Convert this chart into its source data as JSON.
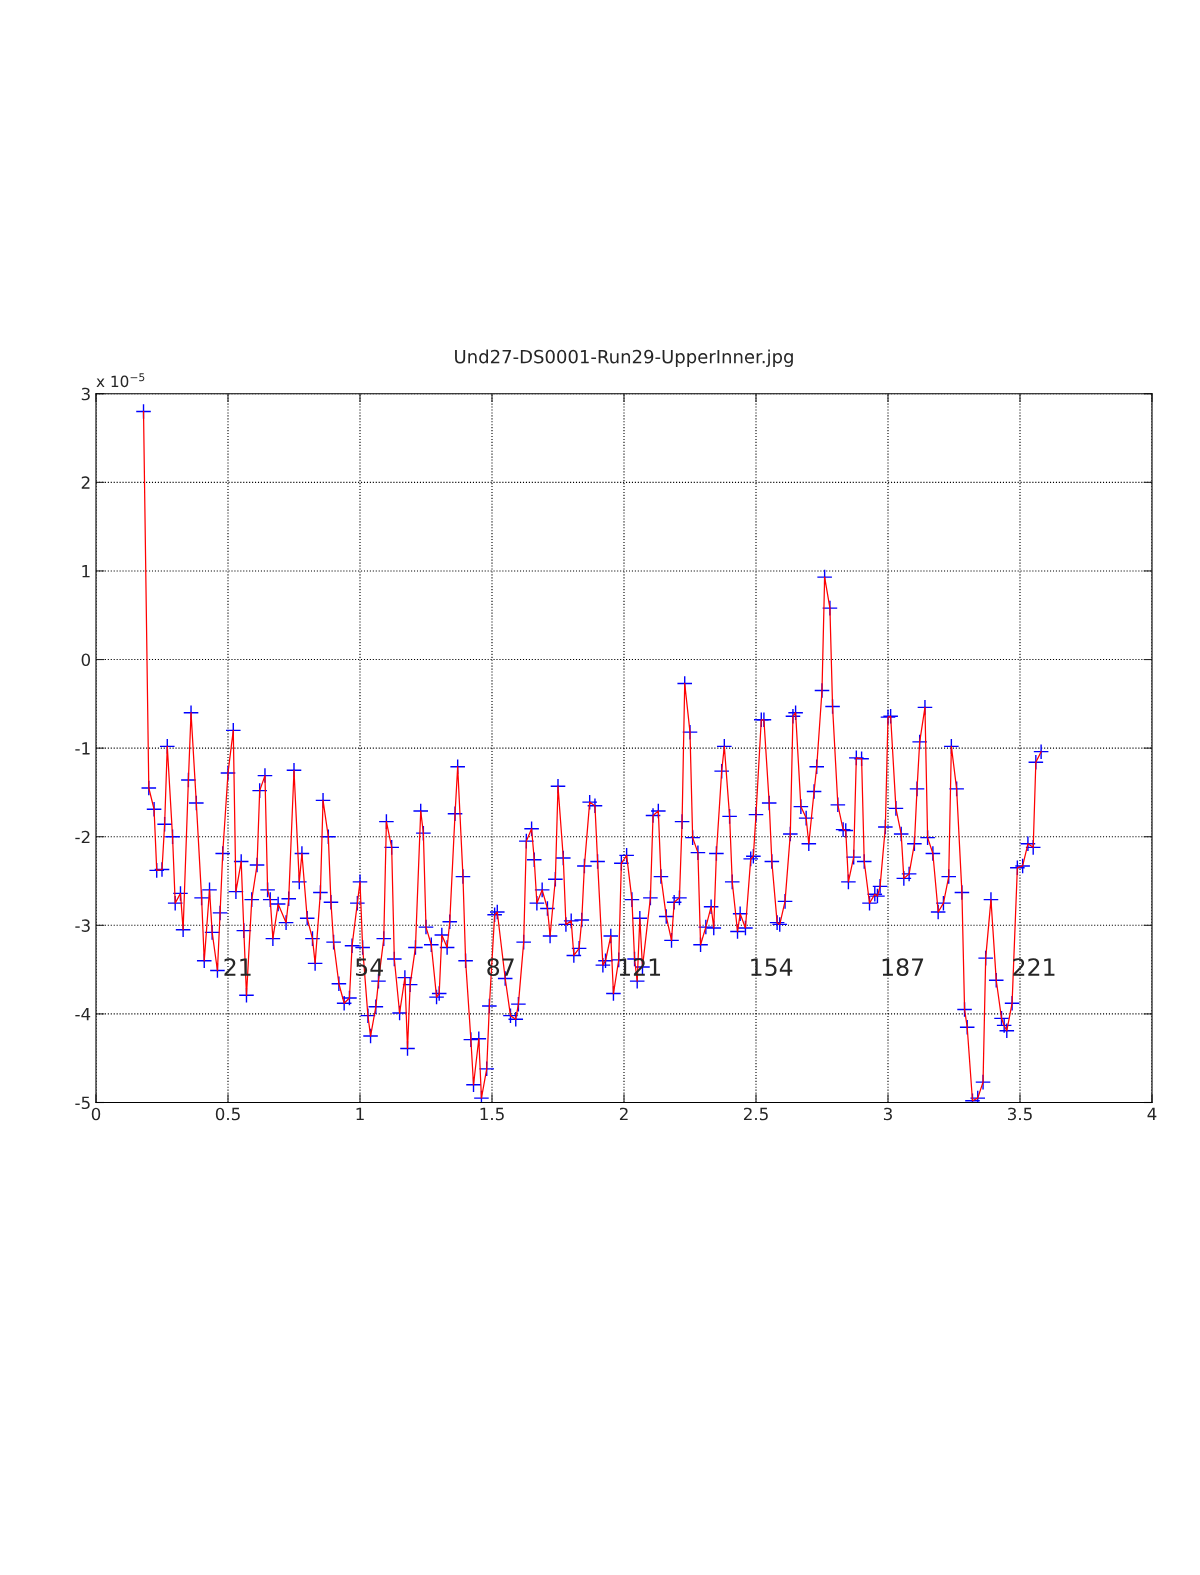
{
  "chart_data": {
    "type": "line",
    "title": "Und27-DS0001-Run29-UpperInner.jpg",
    "ylabel": "x 10$^{−5}$",
    "x": [
      0.18,
      0.2,
      0.22,
      0.23,
      0.25,
      0.26,
      0.27,
      0.29,
      0.3,
      0.32,
      0.33,
      0.35,
      0.36,
      0.38,
      0.4,
      0.41,
      0.43,
      0.44,
      0.46,
      0.47,
      0.48,
      0.5,
      0.52,
      0.53,
      0.55,
      0.56,
      0.57,
      0.59,
      0.61,
      0.62,
      0.64,
      0.65,
      0.66,
      0.67,
      0.69,
      0.72,
      0.73,
      0.75,
      0.77,
      0.78,
      0.8,
      0.82,
      0.83,
      0.85,
      0.86,
      0.88,
      0.89,
      0.9,
      0.92,
      0.94,
      0.96,
      0.97,
      0.99,
      1.0,
      1.01,
      1.03,
      1.04,
      1.06,
      1.07,
      1.09,
      1.1,
      1.12,
      1.13,
      1.15,
      1.17,
      1.18,
      1.19,
      1.21,
      1.23,
      1.24,
      1.25,
      1.27,
      1.29,
      1.3,
      1.31,
      1.33,
      1.34,
      1.36,
      1.37,
      1.39,
      1.4,
      1.42,
      1.43,
      1.45,
      1.46,
      1.48,
      1.49,
      1.51,
      1.52,
      1.55,
      1.57,
      1.59,
      1.6,
      1.62,
      1.63,
      1.65,
      1.66,
      1.67,
      1.69,
      1.71,
      1.72,
      1.74,
      1.75,
      1.77,
      1.78,
      1.8,
      1.81,
      1.83,
      1.84,
      1.85,
      1.87,
      1.89,
      1.9,
      1.92,
      1.93,
      1.95,
      1.96,
      1.98,
      1.99,
      2.01,
      2.03,
      2.04,
      2.05,
      2.06,
      2.07,
      2.1,
      2.11,
      2.13,
      2.14,
      2.16,
      2.18,
      2.19,
      2.21,
      2.22,
      2.23,
      2.25,
      2.26,
      2.28,
      2.29,
      2.31,
      2.33,
      2.34,
      2.35,
      2.37,
      2.38,
      2.4,
      2.41,
      2.43,
      2.44,
      2.46,
      2.48,
      2.49,
      2.5,
      2.52,
      2.53,
      2.55,
      2.56,
      2.58,
      2.59,
      2.61,
      2.63,
      2.64,
      2.65,
      2.67,
      2.69,
      2.7,
      2.72,
      2.73,
      2.75,
      2.76,
      2.78,
      2.79,
      2.81,
      2.83,
      2.84,
      2.85,
      2.87,
      2.88,
      2.9,
      2.91,
      2.93,
      2.95,
      2.96,
      2.97,
      2.99,
      3.0,
      3.01,
      3.03,
      3.05,
      3.06,
      3.08,
      3.1,
      3.11,
      3.12,
      3.14,
      3.15,
      3.17,
      3.19,
      3.21,
      3.23,
      3.24,
      3.26,
      3.28,
      3.29,
      3.3,
      3.32,
      3.34,
      3.36,
      3.37,
      3.39,
      3.41,
      3.43,
      3.44,
      3.45,
      3.47,
      3.49,
      3.51,
      3.53,
      3.55,
      3.56,
      3.58
    ],
    "series": [
      {
        "type": "line",
        "color": "#ff0000",
        "line_style": "solid",
        "values": [
          2.8,
          -1.45,
          -1.69,
          -2.38,
          -2.37,
          -1.86,
          -0.98,
          -2.0,
          -2.75,
          -2.64,
          -3.05,
          -1.36,
          -0.6,
          -1.62,
          -2.69,
          -3.4,
          -2.6,
          -3.08,
          -3.51,
          -2.86,
          -2.19,
          -1.28,
          -0.8,
          -2.62,
          -2.28,
          -3.06,
          -3.79,
          -2.71,
          -2.32,
          -1.48,
          -1.31,
          -2.6,
          -2.71,
          -3.15,
          -2.76,
          -2.97,
          -2.7,
          -1.25,
          -2.51,
          -2.19,
          -2.92,
          -3.15,
          -3.43,
          -2.63,
          -1.59,
          -2.0,
          -2.74,
          -3.19,
          -3.66,
          -3.88,
          -3.82,
          -3.23,
          -2.75,
          -2.51,
          -3.25,
          -4.02,
          -4.25,
          -3.92,
          -3.63,
          -3.15,
          -1.83,
          -2.12,
          -3.38,
          -3.99,
          -3.59,
          -4.39,
          -3.67,
          -3.25,
          -1.71,
          -1.96,
          -3.02,
          -3.22,
          -3.81,
          -3.77,
          -3.11,
          -3.25,
          -2.96,
          -1.74,
          -1.21,
          -2.45,
          -3.4,
          -4.29,
          -4.8,
          -4.28,
          -4.95,
          -4.62,
          -3.91,
          -2.88,
          -2.85,
          -3.6,
          -4.02,
          -4.06,
          -3.89,
          -3.19,
          -2.05,
          -1.91,
          -2.26,
          -2.75,
          -2.6,
          -2.81,
          -3.12,
          -2.48,
          -1.43,
          -2.24,
          -2.99,
          -2.95,
          -3.34,
          -3.26,
          -2.94,
          -2.33,
          -1.61,
          -1.65,
          -2.28,
          -3.45,
          -3.4,
          -3.12,
          -3.77,
          -3.39,
          -2.3,
          -2.21,
          -2.71,
          -3.38,
          -3.63,
          -2.92,
          -3.47,
          -2.69,
          -1.76,
          -1.71,
          -2.45,
          -2.9,
          -3.17,
          -2.74,
          -2.69,
          -1.83,
          -0.27,
          -0.82,
          -2.01,
          -2.18,
          -3.22,
          -3.02,
          -2.79,
          -3.03,
          -2.19,
          -1.26,
          -0.98,
          -1.77,
          -2.51,
          -3.07,
          -2.87,
          -3.03,
          -2.25,
          -2.22,
          -1.75,
          -0.68,
          -0.68,
          -1.62,
          -2.28,
          -2.97,
          -2.99,
          -2.73,
          -1.97,
          -0.64,
          -0.6,
          -1.66,
          -1.79,
          -2.08,
          -1.49,
          -1.21,
          -0.35,
          0.93,
          0.58,
          -0.53,
          -1.64,
          -1.92,
          -1.93,
          -2.51,
          -2.23,
          -1.11,
          -1.12,
          -2.28,
          -2.75,
          -2.65,
          -2.67,
          -2.56,
          -1.89,
          -0.65,
          -0.64,
          -1.68,
          -1.97,
          -2.47,
          -2.42,
          -2.08,
          -1.46,
          -0.93,
          -0.54,
          -2.01,
          -2.19,
          -2.85,
          -2.75,
          -2.45,
          -0.98,
          -1.46,
          -2.63,
          -3.95,
          -4.15,
          -4.98,
          -4.95,
          -4.77,
          -3.37,
          -2.71,
          -3.62,
          -4.05,
          -4.13,
          -4.19,
          -3.88,
          -2.35,
          -2.33,
          -2.08,
          -2.12,
          -1.16,
          -1.04
        ]
      },
      {
        "type": "scatter",
        "color": "#0000ff",
        "marker": "cross",
        "values": [
          2.8,
          -1.45,
          -1.69,
          -2.38,
          -2.37,
          -1.86,
          -0.98,
          -2.0,
          -2.75,
          -2.64,
          -3.05,
          -1.36,
          -0.6,
          -1.62,
          -2.69,
          -3.4,
          -2.6,
          -3.08,
          -3.51,
          -2.86,
          -2.19,
          -1.28,
          -0.8,
          -2.62,
          -2.28,
          -3.06,
          -3.79,
          -2.71,
          -2.32,
          -1.48,
          -1.31,
          -2.6,
          -2.71,
          -3.15,
          -2.76,
          -2.97,
          -2.7,
          -1.25,
          -2.51,
          -2.19,
          -2.92,
          -3.15,
          -3.43,
          -2.63,
          -1.59,
          -2.0,
          -2.74,
          -3.19,
          -3.66,
          -3.88,
          -3.82,
          -3.23,
          -2.75,
          -2.51,
          -3.25,
          -4.02,
          -4.25,
          -3.92,
          -3.63,
          -3.15,
          -1.83,
          -2.12,
          -3.38,
          -3.99,
          -3.59,
          -4.39,
          -3.67,
          -3.25,
          -1.71,
          -1.96,
          -3.02,
          -3.22,
          -3.81,
          -3.77,
          -3.11,
          -3.25,
          -2.96,
          -1.74,
          -1.21,
          -2.45,
          -3.4,
          -4.29,
          -4.8,
          -4.28,
          -4.95,
          -4.62,
          -3.91,
          -2.88,
          -2.85,
          -3.6,
          -4.02,
          -4.06,
          -3.89,
          -3.19,
          -2.05,
          -1.91,
          -2.26,
          -2.75,
          -2.6,
          -2.81,
          -3.12,
          -2.48,
          -1.43,
          -2.24,
          -2.99,
          -2.95,
          -3.34,
          -3.26,
          -2.94,
          -2.33,
          -1.61,
          -1.65,
          -2.28,
          -3.45,
          -3.4,
          -3.12,
          -3.77,
          -3.39,
          -2.3,
          -2.21,
          -2.71,
          -3.38,
          -3.63,
          -2.92,
          -3.47,
          -2.69,
          -1.76,
          -1.71,
          -2.45,
          -2.9,
          -3.17,
          -2.74,
          -2.69,
          -1.83,
          -0.27,
          -0.82,
          -2.01,
          -2.18,
          -3.22,
          -3.02,
          -2.79,
          -3.03,
          -2.19,
          -1.26,
          -0.98,
          -1.77,
          -2.51,
          -3.07,
          -2.87,
          -3.03,
          -2.25,
          -2.22,
          -1.75,
          -0.68,
          -0.68,
          -1.62,
          -2.28,
          -2.97,
          -2.99,
          -2.73,
          -1.97,
          -0.64,
          -0.6,
          -1.66,
          -1.79,
          -2.08,
          -1.49,
          -1.21,
          -0.35,
          0.93,
          0.58,
          -0.53,
          -1.64,
          -1.92,
          -1.93,
          -2.51,
          -2.23,
          -1.11,
          -1.12,
          -2.28,
          -2.75,
          -2.65,
          -2.67,
          -2.56,
          -1.89,
          -0.65,
          -0.64,
          -1.68,
          -1.97,
          -2.47,
          -2.42,
          -2.08,
          -1.46,
          -0.93,
          -0.54,
          -2.01,
          -2.19,
          -2.85,
          -2.75,
          -2.45,
          -0.98,
          -1.46,
          -2.63,
          -3.95,
          -4.15,
          -4.98,
          -4.95,
          -4.77,
          -3.37,
          -2.71,
          -3.62,
          -4.05,
          -4.13,
          -4.19,
          -3.88,
          -2.35,
          -2.33,
          -2.08,
          -2.12,
          -1.16,
          -1.04
        ]
      }
    ],
    "xlim": [
      0,
      4
    ],
    "xticks": [
      0,
      0.5,
      1,
      1.5,
      2,
      2.5,
      3,
      3.5,
      4
    ],
    "ylim": [
      -5,
      3
    ],
    "yticks": [
      -5,
      -4,
      -3,
      -2,
      -1,
      0,
      1,
      2,
      3
    ],
    "grid": true,
    "annotations": [
      "21",
      "54",
      "87",
      "121",
      "154",
      "187",
      "221"
    ]
  }
}
